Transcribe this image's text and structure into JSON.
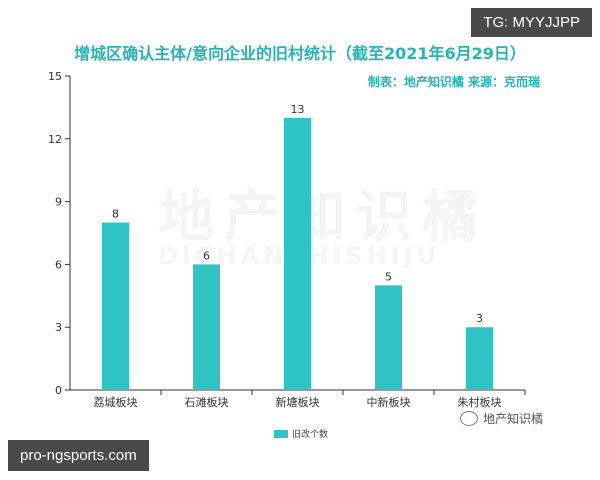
{
  "badge_top": "TG: MYYJJPP",
  "badge_bottom": "pro-ngsports.com",
  "credit": "制表：地产知识橘    来源：克而瑞",
  "watermark_cn": "地产知识橘",
  "watermark_en": "DICHANZHISHIJU",
  "wechat_label": "地产知识橘",
  "chart_data": {
    "type": "bar",
    "title": "增城区确认主体/意向企业的旧村统计（截至2021年6月29日）",
    "categories": [
      "荔城板块",
      "石滩板块",
      "新塘板块",
      "中新板块",
      "朱村板块"
    ],
    "series": [
      {
        "name": "旧改个数",
        "values": [
          8,
          6,
          13,
          5,
          3
        ],
        "color": "#2ec4c4"
      }
    ],
    "yticks": [
      0,
      3,
      6,
      9,
      12,
      15
    ],
    "ylim": [
      0,
      15
    ],
    "grid": false,
    "legend": "bottom",
    "show_data_labels": true
  }
}
